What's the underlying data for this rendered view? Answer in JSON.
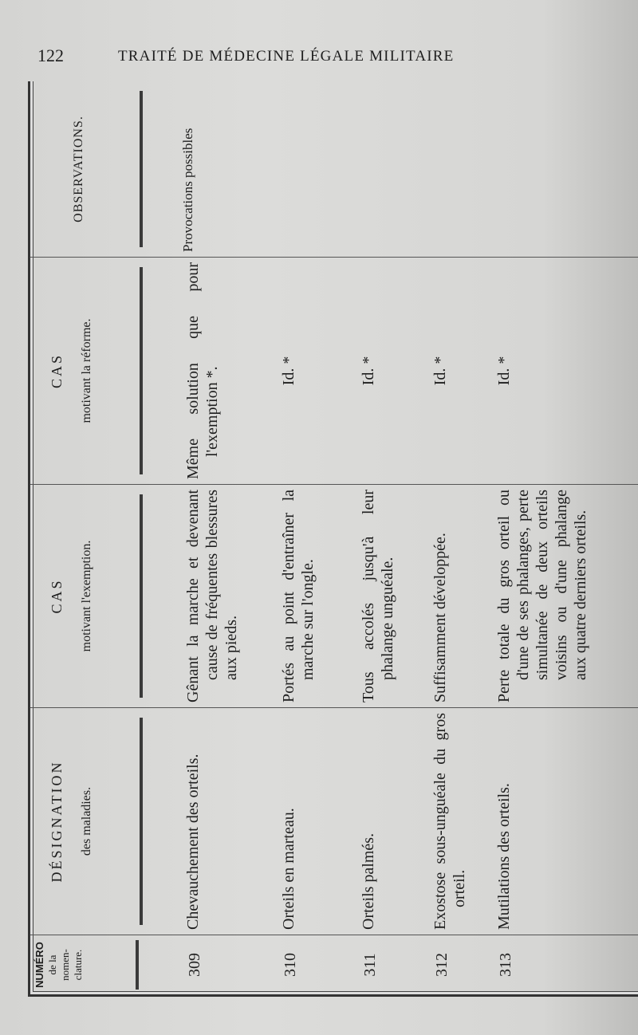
{
  "page": {
    "number": "122",
    "running_head": "TRAITÉ DE MÉDECINE LÉGALE MILITAIRE"
  },
  "table": {
    "headers": {
      "numero": [
        "NUMÉRO",
        "de la",
        "nomen-",
        "clature."
      ],
      "designation": {
        "title": "DÉSIGNATION",
        "sub": "des maladies."
      },
      "exemption": {
        "title": "CAS",
        "sub": "motivant l'exemption."
      },
      "reforme": {
        "title": "CAS",
        "sub": "motivant la réforme."
      },
      "observations": {
        "title": "OBSERVATIONS."
      }
    },
    "rows": [
      {
        "num": "309",
        "designation": "Chevauchement des orteils.",
        "exemption": "Gênant la marche et devenant cause de fréquentes blessures aux pieds.",
        "reforme": "Même solution que pour l'exemption *.",
        "observations": "Provocations possibles"
      },
      {
        "num": "310",
        "designation": "Orteils en marteau.",
        "exemption": "Portés au point d'entraîner la marche sur l'ongle.",
        "reforme": "Id. *",
        "observations": ""
      },
      {
        "num": "311",
        "designation": "Orteils palmés.",
        "exemption": "Tous accolés jusqu'à leur phalange unguéale.",
        "reforme": "Id. *",
        "observations": ""
      },
      {
        "num": "312",
        "designation": "Exostose sous-unguéale du gros orteil.",
        "exemption": "Suffisamment développée.",
        "reforme": "Id. *",
        "observations": ""
      },
      {
        "num": "313",
        "designation": "Mutilations des orteils.",
        "exemption": "Perte totale du gros orteil ou d'une de ses phalanges, perte simultanée de deux orteils voisins ou d'une phalange aux quatre derniers orteils.",
        "reforme": "Id. *",
        "observations": ""
      }
    ]
  }
}
